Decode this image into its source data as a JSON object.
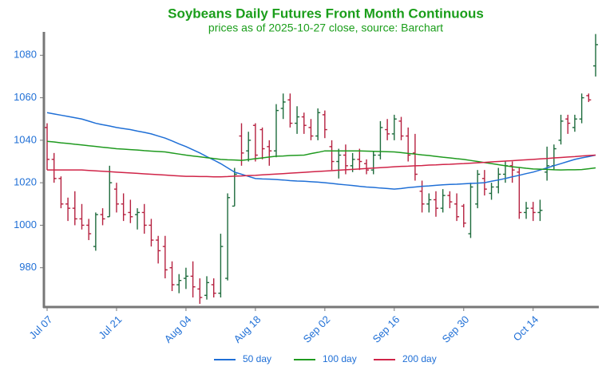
{
  "chart_data": {
    "type": "ohlc",
    "title": "Soybeans Daily Futures Front Month Continuous",
    "subtitle": "prices as of 2025-10-27 close, source: Barchart",
    "categories": [
      "Jul 07",
      null,
      null,
      null,
      null,
      null,
      null,
      null,
      null,
      null,
      "Jul 21",
      null,
      null,
      null,
      null,
      null,
      null,
      null,
      null,
      null,
      "Aug 04",
      null,
      null,
      null,
      null,
      null,
      null,
      null,
      null,
      null,
      "Aug 18",
      null,
      null,
      null,
      null,
      null,
      null,
      null,
      null,
      null,
      "Sep 02",
      null,
      null,
      null,
      null,
      null,
      null,
      null,
      null,
      null,
      "Sep 16",
      null,
      null,
      null,
      null,
      null,
      null,
      null,
      null,
      null,
      "Sep 30",
      null,
      null,
      null,
      null,
      null,
      null,
      null,
      null,
      null,
      "Oct 14",
      null,
      null,
      null,
      null,
      null,
      null,
      null,
      null,
      null
    ],
    "open": [
      1046,
      1031,
      1022,
      1010,
      1008,
      1003,
      1000,
      990,
      1005,
      1004,
      1017,
      1010,
      1006,
      1005,
      1006,
      1000,
      993,
      990,
      980,
      972,
      975,
      976,
      970,
      967,
      972,
      968,
      975,
      1009,
      1042,
      1035,
      1047,
      1045,
      1037,
      1035,
      1055,
      1059,
      1048,
      1051,
      1046,
      1042,
      1052,
      1037,
      1030,
      1033,
      1028,
      1031,
      1029,
      1026,
      1033,
      1045,
      1043,
      1049,
      1042,
      1034,
      1016,
      1010,
      1012,
      1008,
      1014,
      1010,
      1009,
      996,
      1010,
      1022,
      1015,
      1018,
      1024,
      1028,
      1025,
      1006,
      1008,
      1006,
      1025,
      1028,
      1040,
      1050,
      1046,
      1050,
      1061,
      1075
    ],
    "high": [
      1048,
      1034,
      1023,
      1013,
      1016,
      1010,
      1003,
      1006,
      1008,
      1028,
      1020,
      1015,
      1012,
      1008,
      1010,
      1003,
      995,
      995,
      983,
      977,
      980,
      983,
      975,
      976,
      975,
      996,
      1015,
      1027,
      1048,
      1044,
      1048,
      1046,
      1040,
      1057,
      1062,
      1062,
      1056,
      1053,
      1050,
      1055,
      1054,
      1040,
      1036,
      1038,
      1034,
      1036,
      1031,
      1035,
      1049,
      1050,
      1052,
      1051,
      1046,
      1043,
      1021,
      1015,
      1016,
      1017,
      1016,
      1015,
      1010,
      1020,
      1026,
      1026,
      1020,
      1027,
      1030,
      1030,
      1027,
      1011,
      1011,
      1012,
      1037,
      1038,
      1052,
      1052,
      1052,
      1062,
      1062,
      1090
    ],
    "low": [
      1026,
      1020,
      1008,
      1002,
      1000,
      998,
      993,
      988,
      1000,
      1004,
      1006,
      1002,
      1001,
      998,
      996,
      990,
      982,
      975,
      969,
      968,
      970,
      966,
      963,
      965,
      966,
      966,
      974,
      1009,
      1028,
      1030,
      1030,
      1031,
      1028,
      1032,
      1050,
      1046,
      1043,
      1043,
      1040,
      1040,
      1041,
      1026,
      1022,
      1024,
      1025,
      1026,
      1024,
      1024,
      1031,
      1040,
      1040,
      1040,
      1030,
      1021,
      1006,
      1006,
      1004,
      1006,
      1008,
      1002,
      999,
      994,
      1008,
      1014,
      1012,
      1015,
      1020,
      1020,
      1003,
      1003,
      1002,
      1002,
      1021,
      1026,
      1038,
      1043,
      1044,
      1048,
      1058,
      1070
    ],
    "close": [
      1031,
      1022,
      1010,
      1008,
      1003,
      1000,
      996,
      1005,
      1003,
      1020,
      1010,
      1005,
      1004,
      1006,
      1000,
      993,
      988,
      979,
      972,
      974,
      976,
      971,
      966,
      973,
      968,
      990,
      1013,
      1024,
      1034,
      1040,
      1033,
      1036,
      1035,
      1054,
      1058,
      1048,
      1051,
      1047,
      1042,
      1053,
      1045,
      1030,
      1033,
      1028,
      1031,
      1030,
      1026,
      1033,
      1046,
      1043,
      1050,
      1042,
      1033,
      1024,
      1010,
      1012,
      1008,
      1014,
      1011,
      1004,
      1001,
      1018,
      1024,
      1017,
      1018,
      1024,
      1028,
      1026,
      1006,
      1008,
      1006,
      1007,
      1028,
      1036,
      1049,
      1048,
      1050,
      1060,
      1059,
      1085
    ],
    "up_color": "#1d6b3c",
    "down_color": "#b5203f",
    "series": [
      {
        "name": "50 day",
        "color": "#1f6fd6",
        "values": [
          1053,
          1052.4,
          1051.8,
          1051.2,
          1050.6,
          1050,
          1049,
          1048,
          1047.3,
          1046.7,
          1046,
          1045.5,
          1045,
          1044.3,
          1043.7,
          1043,
          1042,
          1041,
          1039.7,
          1038.3,
          1037,
          1035.5,
          1034,
          1032.3,
          1030.7,
          1029,
          1027,
          1025,
          1024,
          1023,
          1022,
          1021.8,
          1021.7,
          1021.5,
          1021.3,
          1021,
          1020.8,
          1020.7,
          1020.5,
          1020.3,
          1020,
          1019.7,
          1019.3,
          1019,
          1018.7,
          1018.3,
          1018,
          1017.8,
          1017.5,
          1017.3,
          1017,
          1017.3,
          1017.7,
          1018,
          1018.3,
          1018.5,
          1018.8,
          1019,
          1019.2,
          1019.3,
          1019.5,
          1019.7,
          1019.8,
          1020,
          1020.7,
          1021.3,
          1022,
          1022.8,
          1023.5,
          1024.3,
          1025,
          1026,
          1027,
          1028,
          1029,
          1030,
          1031,
          1031.7,
          1032.3,
          1033
        ]
      },
      {
        "name": "100 day",
        "color": "#1f9a1f",
        "values": [
          1039.5,
          1039.2,
          1038.8,
          1038.5,
          1038.1,
          1037.8,
          1037.4,
          1037.1,
          1036.7,
          1036.4,
          1036,
          1035.8,
          1035.6,
          1035.4,
          1035.1,
          1034.9,
          1034.7,
          1034.5,
          1034,
          1033.5,
          1033,
          1032.6,
          1032.2,
          1031.8,
          1031.4,
          1031,
          1030.8,
          1030.7,
          1030.5,
          1030.9,
          1031.3,
          1031.7,
          1032.1,
          1032.5,
          1032.6,
          1032.8,
          1032.9,
          1033,
          1033.7,
          1034.3,
          1035,
          1035,
          1035,
          1035,
          1035,
          1035,
          1034.9,
          1034.8,
          1034.7,
          1034.6,
          1034.5,
          1034.2,
          1033.8,
          1033.5,
          1033.1,
          1032.8,
          1032.4,
          1032,
          1031.7,
          1031.3,
          1031,
          1030.5,
          1030,
          1029.5,
          1029,
          1028.5,
          1028,
          1027.5,
          1027.2,
          1026.8,
          1026.5,
          1026.4,
          1026.3,
          1026.1,
          1026,
          1026.1,
          1026.1,
          1026.2,
          1026.6,
          1027
        ]
      },
      {
        "name": "200 day",
        "color": "#d02448",
        "values": [
          1026,
          1026,
          1026,
          1026,
          1026,
          1026,
          1025.8,
          1025.6,
          1025.4,
          1025.2,
          1025,
          1024.8,
          1024.6,
          1024.4,
          1024.2,
          1024,
          1023.8,
          1023.6,
          1023.4,
          1023.2,
          1023,
          1023,
          1022.9,
          1022.9,
          1022.8,
          1022.8,
          1022.9,
          1023.1,
          1023.2,
          1023.4,
          1023.5,
          1023.7,
          1023.9,
          1024.1,
          1024.3,
          1024.5,
          1024.7,
          1024.9,
          1025.1,
          1025.3,
          1025.5,
          1025.7,
          1025.9,
          1026.1,
          1026.3,
          1026.5,
          1026.7,
          1026.9,
          1027.1,
          1027.3,
          1027.5,
          1027.7,
          1027.8,
          1028,
          1028.1,
          1028.3,
          1028.4,
          1028.6,
          1028.7,
          1028.9,
          1029,
          1029.2,
          1029.4,
          1029.6,
          1029.8,
          1030,
          1030.2,
          1030.4,
          1030.6,
          1030.8,
          1031,
          1031.2,
          1031.4,
          1031.7,
          1031.9,
          1032.1,
          1032.3,
          1032.6,
          1032.8,
          1033
        ]
      }
    ],
    "ylim": [
      961.5,
      1091
    ],
    "yticks": [
      980,
      1000,
      1020,
      1040,
      1060,
      1080
    ],
    "grid": false,
    "legend": "bottom"
  }
}
